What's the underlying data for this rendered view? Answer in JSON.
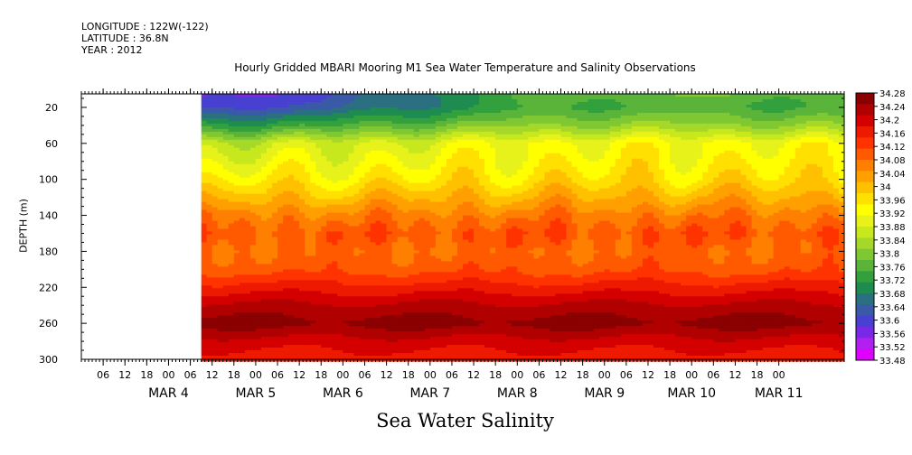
{
  "header": {
    "longitude": "LONGITUDE : 122W(-122)",
    "latitude": "LATITUDE : 36.8N",
    "year": "YEAR : 2012"
  },
  "chart_data": {
    "type": "heatmap",
    "title": "Hourly Gridded MBARI Mooring M1 Sea Water Temperature and Salinity Observations",
    "variable": "Sea Water Salinity",
    "ylabel": "DEPTH (m)",
    "y_axis": {
      "ticks": [
        20,
        60,
        100,
        140,
        180,
        220,
        260,
        300
      ],
      "range": [
        5,
        300
      ],
      "inverted": true
    },
    "x_axis": {
      "hour_labels": [
        "06",
        "12",
        "18",
        "00",
        "06",
        "12",
        "18",
        "00",
        "06",
        "12",
        "18",
        "00",
        "06",
        "12",
        "18",
        "00",
        "06",
        "12",
        "18",
        "00",
        "06",
        "12",
        "18",
        "00",
        "06",
        "12",
        "18",
        "00",
        "06",
        "12",
        "18",
        "00"
      ],
      "date_labels": [
        "MAR 4",
        "MAR 5",
        "MAR 6",
        "MAR 7",
        "MAR 8",
        "MAR 9",
        "MAR 10",
        "MAR 11"
      ],
      "range_hours": [
        -24,
        186
      ],
      "data_start_hour": 9
    },
    "colorbar": {
      "levels": [
        34.28,
        34.24,
        34.2,
        34.16,
        34.12,
        34.08,
        34.04,
        34,
        33.96,
        33.92,
        33.88,
        33.84,
        33.8,
        33.76,
        33.72,
        33.68,
        33.64,
        33.6,
        33.56,
        33.52,
        33.48
      ],
      "colors": [
        "#8b0000",
        "#b00000",
        "#d40000",
        "#ee1a00",
        "#ff3300",
        "#ff5a00",
        "#ff8000",
        "#ffa000",
        "#ffc000",
        "#ffe000",
        "#ffff00",
        "#e6f21a",
        "#c8e81e",
        "#a6d82a",
        "#80c832",
        "#5ab43a",
        "#32a03c",
        "#1e8c50",
        "#2a7080",
        "#3a5aa8",
        "#4840d0",
        "#7a28e8",
        "#b020f0",
        "#e000ff"
      ]
    },
    "profile": [
      {
        "depth": 5,
        "value": 33.56
      },
      {
        "depth": 20,
        "value": 33.6
      },
      {
        "depth": 40,
        "value": 33.72
      },
      {
        "depth": 60,
        "value": 33.86
      },
      {
        "depth": 80,
        "value": 33.9
      },
      {
        "depth": 100,
        "value": 33.94
      },
      {
        "depth": 120,
        "value": 34.0
      },
      {
        "depth": 140,
        "value": 34.06
      },
      {
        "depth": 160,
        "value": 34.1
      },
      {
        "depth": 180,
        "value": 34.08
      },
      {
        "depth": 200,
        "value": 34.1
      },
      {
        "depth": 220,
        "value": 34.16
      },
      {
        "depth": 240,
        "value": 34.22
      },
      {
        "depth": 260,
        "value": 34.26
      },
      {
        "depth": 280,
        "value": 34.2
      },
      {
        "depth": 300,
        "value": 34.16
      }
    ],
    "surface_trend": [
      {
        "hour": 9,
        "value": 33.54
      },
      {
        "hour": 40,
        "value": 33.58
      },
      {
        "hour": 70,
        "value": 33.66
      },
      {
        "hour": 100,
        "value": 33.74
      },
      {
        "hour": 140,
        "value": 33.76
      },
      {
        "hour": 186,
        "value": 33.74
      }
    ]
  }
}
